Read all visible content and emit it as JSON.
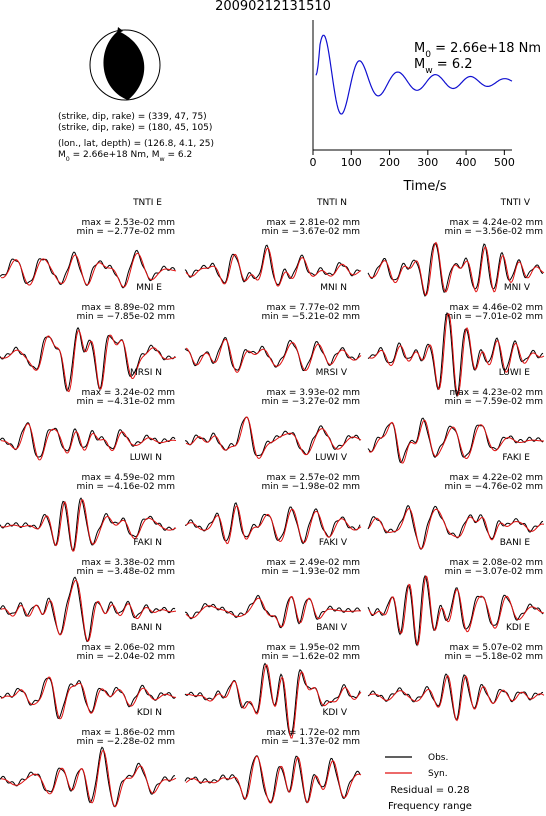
{
  "title": "20090212131510",
  "mechanism": {
    "nodal_planes": [
      "(strike, dip, rake) = (339, 47, 75)",
      "(strike, dip, rake) = (180, 45, 105)"
    ],
    "location": "(lon., lat, depth) = (126.8, 4.1, 25)",
    "moment_line": {
      "parts": [
        "M",
        "0",
        " = 2.66e+18 Nm, M",
        "w",
        " = 6.2"
      ]
    }
  },
  "stf": {
    "moment": {
      "parts": [
        "M",
        "0",
        " = 2.66e+18 Nm"
      ]
    },
    "magnitude": {
      "parts": [
        "M",
        "w",
        " = 6.2"
      ]
    },
    "x_label": "Time/s",
    "xlim": [
      0,
      520
    ],
    "xticks": [
      0,
      100,
      200,
      300,
      400,
      500
    ]
  },
  "panels": [
    {
      "station": "TNTI E",
      "max": "max = 2.53e-02 mm",
      "min": "min = −2.77e-02 mm"
    },
    {
      "station": "TNTI N",
      "max": "max = 2.81e-02 mm",
      "min": "min = −3.67e-02 mm"
    },
    {
      "station": "TNTI V",
      "max": "max = 4.24e-02 mm",
      "min": "min = −3.56e-02 mm"
    },
    {
      "station": "MNI E",
      "max": "max = 8.89e-02 mm",
      "min": "min = −7.85e-02 mm"
    },
    {
      "station": "MNI N",
      "max": "max = 7.77e-02 mm",
      "min": "min = −5.21e-02 mm"
    },
    {
      "station": "MNI V",
      "max": "max = 4.46e-02 mm",
      "min": "min = −7.01e-02 mm"
    },
    {
      "station": "MRSI N",
      "max": "max = 3.24e-02 mm",
      "min": "min = −4.31e-02 mm"
    },
    {
      "station": "MRSI V",
      "max": "max = 3.93e-02 mm",
      "min": "min = −3.27e-02 mm"
    },
    {
      "station": "LUWI E",
      "max": "max = 4.23e-02 mm",
      "min": "min = −7.59e-02 mm"
    },
    {
      "station": "LUWI N",
      "max": "max = 4.59e-02 mm",
      "min": "min = −4.16e-02 mm"
    },
    {
      "station": "LUWI V",
      "max": "max = 2.57e-02 mm",
      "min": "min = −1.98e-02 mm"
    },
    {
      "station": "FAKI E",
      "max": "max = 4.22e-02 mm",
      "min": "min = −4.76e-02 mm"
    },
    {
      "station": "FAKI N",
      "max": "max = 3.38e-02 mm",
      "min": "min = −3.48e-02 mm"
    },
    {
      "station": "FAKI V",
      "max": "max = 2.49e-02 mm",
      "min": "min = −1.93e-02 mm"
    },
    {
      "station": "BANI E",
      "max": "max = 2.08e-02 mm",
      "min": "min = −3.07e-02 mm"
    },
    {
      "station": "BANI N",
      "max": "max = 2.06e-02 mm",
      "min": "min = −2.04e-02 mm"
    },
    {
      "station": "BANI V",
      "max": "max = 1.95e-02 mm",
      "min": "min = −1.62e-02 mm"
    },
    {
      "station": "KDI E",
      "max": "max = 5.07e-02 mm",
      "min": "min = −5.18e-02 mm"
    },
    {
      "station": "KDI N",
      "max": "max = 1.86e-02 mm",
      "min": "min = −2.28e-02 mm"
    },
    {
      "station": "KDI V",
      "max": "max = 1.72e-02 mm",
      "min": "min = −1.37e-02 mm"
    }
  ],
  "legend": {
    "observed": "Obs.",
    "synthetic": "Syn.",
    "residual": "Residual = 0.28",
    "frequency": "Frequency range"
  }
}
